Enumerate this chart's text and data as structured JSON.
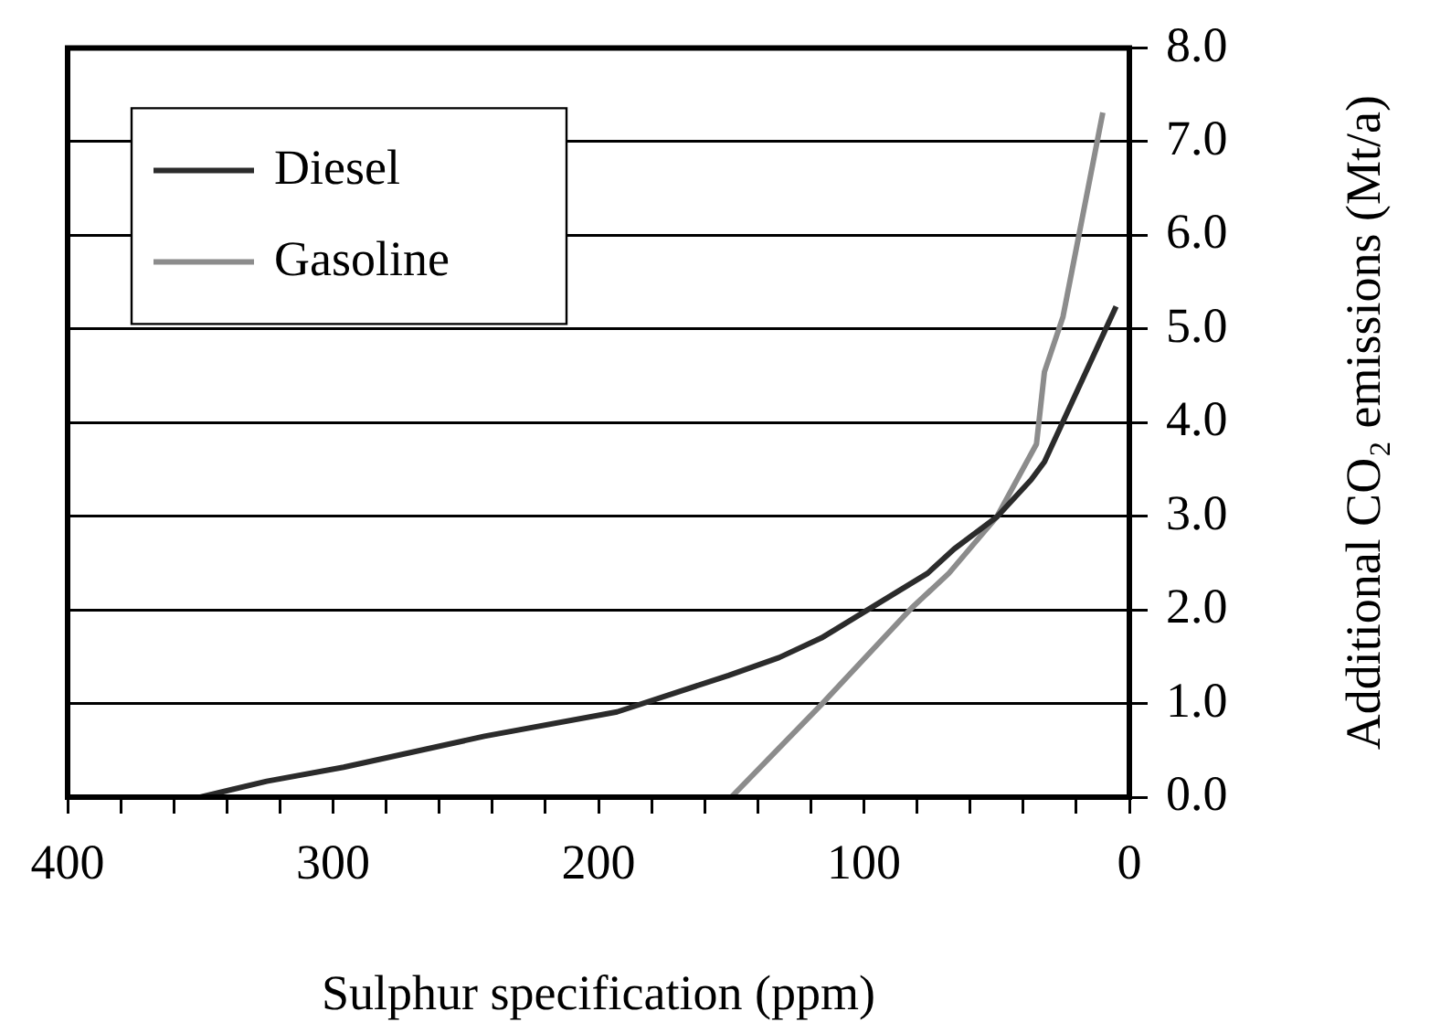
{
  "chart_data": {
    "type": "line",
    "xlabel": "Sulphur specification (ppm)",
    "ylabel": "Additional CO₂ emissions (Mt/a)",
    "xlim": [
      400,
      0
    ],
    "xticks": [
      400,
      {
        "value": 380,
        "label": null
      },
      {
        "value": 360,
        "label": null
      },
      {
        "value": 340,
        "label": null
      },
      {
        "value": 320,
        "label": null
      },
      300,
      {
        "value": 280,
        "label": null
      },
      {
        "value": 260,
        "label": null
      },
      {
        "value": 240,
        "label": null
      },
      {
        "value": 220,
        "label": null
      },
      200,
      {
        "value": 180,
        "label": null
      },
      {
        "value": 160,
        "label": null
      },
      {
        "value": 140,
        "label": null
      },
      {
        "value": 120,
        "label": null
      },
      100,
      {
        "value": 80,
        "label": null
      },
      {
        "value": 60,
        "label": null
      },
      {
        "value": 40,
        "label": null
      },
      {
        "value": 20,
        "label": null
      },
      0
    ],
    "ylim": [
      0,
      8
    ],
    "yticks": [
      {
        "value": 0,
        "label": "0.0"
      },
      {
        "value": 1,
        "label": "1.0"
      },
      {
        "value": 2,
        "label": "2.0"
      },
      {
        "value": 3,
        "label": "3.0"
      },
      {
        "value": 4,
        "label": "4.0"
      },
      {
        "value": 5,
        "label": "5.0"
      },
      {
        "value": 6,
        "label": "6.0"
      },
      {
        "value": 7,
        "label": "7.0"
      },
      {
        "value": 8,
        "label": "8.0"
      }
    ],
    "grid": "y",
    "legend": "top left",
    "marker": "none",
    "line_style": "solid",
    "series": [
      {
        "name": "Diesel",
        "color": "#2b2b2b",
        "x": [
          350,
          325,
          296,
          243,
          193,
          151,
          132,
          116,
          76,
          66,
          50,
          37,
          32,
          5
        ],
        "values": [
          0,
          0.17,
          0.32,
          0.65,
          0.91,
          1.3,
          1.49,
          1.7,
          2.39,
          2.65,
          2.99,
          3.39,
          3.58,
          5.24
        ]
      },
      {
        "name": "Gasoline",
        "color": "#8c8c8c",
        "x": [
          150,
          116,
          82,
          68,
          50,
          35,
          32,
          25,
          10
        ],
        "values": [
          0,
          0.99,
          2.02,
          2.39,
          2.99,
          3.77,
          4.54,
          5.13,
          7.31
        ]
      }
    ]
  }
}
